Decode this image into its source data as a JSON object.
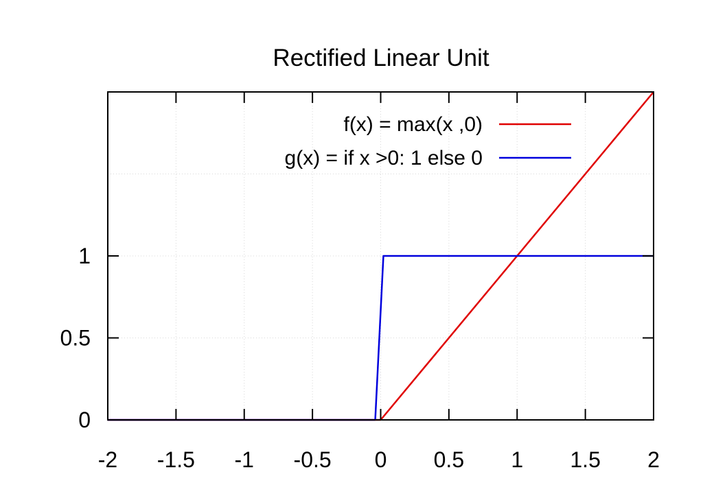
{
  "chart_data": {
    "type": "line",
    "title": "Rectified Linear Unit",
    "xlabel": "",
    "ylabel": "",
    "xlim": [
      -2,
      2
    ],
    "ylim": [
      0,
      2
    ],
    "grid": true,
    "legend_position": "top-right",
    "x_ticks": [
      -2,
      -1.5,
      -1,
      -0.5,
      0,
      0.5,
      1,
      1.5,
      2
    ],
    "x_tick_labels": [
      "-2",
      "-1.5",
      "-1",
      "-0.5",
      "0",
      "0.5",
      "1",
      "1.5",
      "2"
    ],
    "y_ticks": [
      0,
      0.5,
      1
    ],
    "y_tick_labels": [
      "0",
      "0.5",
      "1"
    ],
    "y_minor_ticks": [
      1.5
    ],
    "series": [
      {
        "name": "f(x) = max(x ,0)",
        "color": "#e00000",
        "x": [
          -2,
          0,
          2
        ],
        "y": [
          0,
          0,
          2
        ]
      },
      {
        "name": "g(x) = if x >0: 1 else 0",
        "color": "#0000dd",
        "x": [
          -2,
          -0.04,
          0.02,
          2
        ],
        "y": [
          0,
          0,
          1,
          1
        ]
      }
    ]
  }
}
